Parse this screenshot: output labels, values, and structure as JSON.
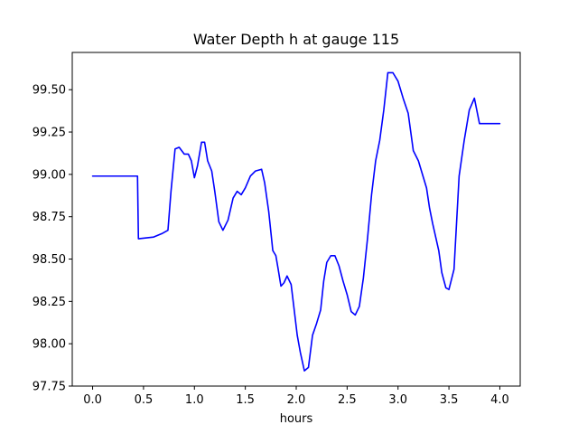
{
  "chart_data": {
    "type": "line",
    "title": "Water Depth h at gauge 115",
    "xlabel": "hours",
    "ylabel": "",
    "xlim": [
      -0.2,
      4.2
    ],
    "ylim": [
      97.75,
      99.72
    ],
    "xticks": [
      0.0,
      0.5,
      1.0,
      1.5,
      2.0,
      2.5,
      3.0,
      3.5,
      4.0
    ],
    "xtick_labels": [
      "0.0",
      "0.5",
      "1.0",
      "1.5",
      "2.0",
      "2.5",
      "3.0",
      "3.5",
      "4.0"
    ],
    "yticks": [
      97.75,
      98.0,
      98.25,
      98.5,
      98.75,
      99.0,
      99.25,
      99.5
    ],
    "ytick_labels": [
      "97.75",
      "98.00",
      "98.25",
      "98.50",
      "98.75",
      "99.00",
      "99.25",
      "99.50"
    ],
    "grid": false,
    "series": [
      {
        "color": "#0000ff",
        "x": [
          0.0,
          0.2,
          0.43,
          0.441,
          0.45,
          0.6,
          0.68,
          0.74,
          0.77,
          0.81,
          0.85,
          0.9,
          0.94,
          0.97,
          1.0,
          1.03,
          1.07,
          1.1,
          1.13,
          1.17,
          1.2,
          1.24,
          1.28,
          1.33,
          1.38,
          1.42,
          1.46,
          1.5,
          1.55,
          1.6,
          1.66,
          1.69,
          1.73,
          1.77,
          1.8,
          1.82,
          1.85,
          1.88,
          1.91,
          1.95,
          1.98,
          2.01,
          2.04,
          2.08,
          2.12,
          2.16,
          2.2,
          2.24,
          2.27,
          2.3,
          2.34,
          2.38,
          2.42,
          2.46,
          2.5,
          2.54,
          2.58,
          2.62,
          2.66,
          2.7,
          2.74,
          2.78,
          2.82,
          2.86,
          2.9,
          2.95,
          3.0,
          3.05,
          3.1,
          3.15,
          3.2,
          3.25,
          3.28,
          3.31,
          3.34,
          3.37,
          3.4,
          3.43,
          3.47,
          3.5,
          3.55,
          3.6,
          3.65,
          3.7,
          3.75,
          3.8,
          3.85,
          3.9,
          3.94,
          3.97,
          4.0
        ],
        "y": [
          98.99,
          98.99,
          98.99,
          98.99,
          98.62,
          98.63,
          98.65,
          98.67,
          98.9,
          99.15,
          99.16,
          99.12,
          99.12,
          99.08,
          98.98,
          99.05,
          99.19,
          99.19,
          99.08,
          99.02,
          98.9,
          98.72,
          98.67,
          98.73,
          98.86,
          98.9,
          98.88,
          98.92,
          98.99,
          99.02,
          99.03,
          98.95,
          98.78,
          98.55,
          98.52,
          98.45,
          98.34,
          98.36,
          98.4,
          98.35,
          98.2,
          98.05,
          97.95,
          97.84,
          97.86,
          98.05,
          98.12,
          98.2,
          98.37,
          98.48,
          98.52,
          98.52,
          98.46,
          98.37,
          98.29,
          98.19,
          98.17,
          98.22,
          98.39,
          98.62,
          98.88,
          99.08,
          99.2,
          99.38,
          99.6,
          99.6,
          99.55,
          99.45,
          99.36,
          99.14,
          99.08,
          98.98,
          98.92,
          98.8,
          98.71,
          98.63,
          98.55,
          98.42,
          98.33,
          98.32,
          98.44,
          98.99,
          99.2,
          99.38,
          99.45,
          99.3,
          99.3,
          99.3,
          99.3,
          99.3,
          99.3
        ]
      }
    ]
  }
}
